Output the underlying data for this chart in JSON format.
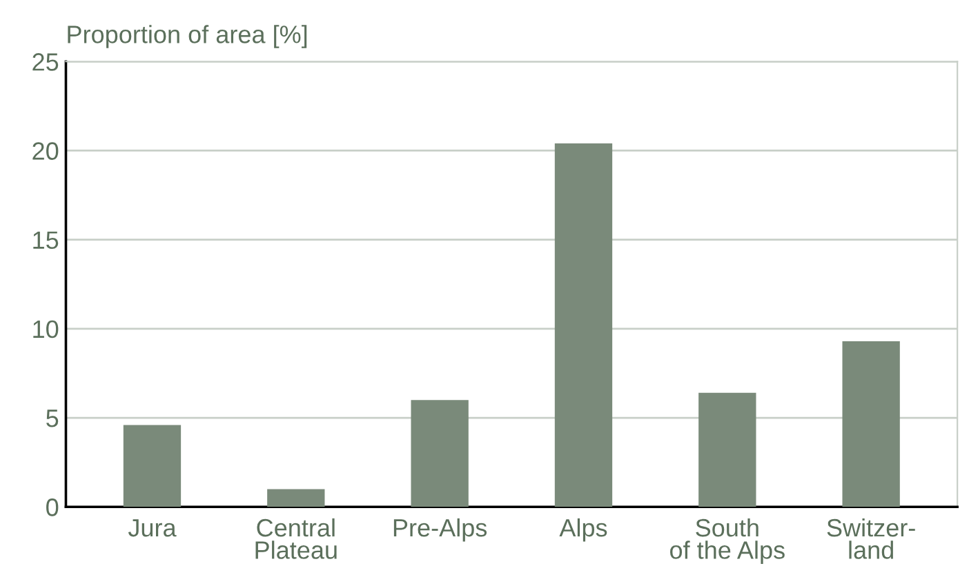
{
  "chart_data": {
    "type": "bar",
    "ylabel": "Proportion of area [%]",
    "categories": [
      "Jura",
      "Central\nPlateau",
      "Pre-Alps",
      "Alps",
      "South\nof the Alps",
      "Switzer-\nland"
    ],
    "values": [
      4.6,
      1.0,
      6.0,
      20.4,
      6.4,
      9.3
    ],
    "color": "#7a8a7a",
    "ylim": [
      0,
      25
    ],
    "yticks": [
      0,
      5,
      10,
      15,
      20,
      25
    ],
    "grid": "y"
  }
}
